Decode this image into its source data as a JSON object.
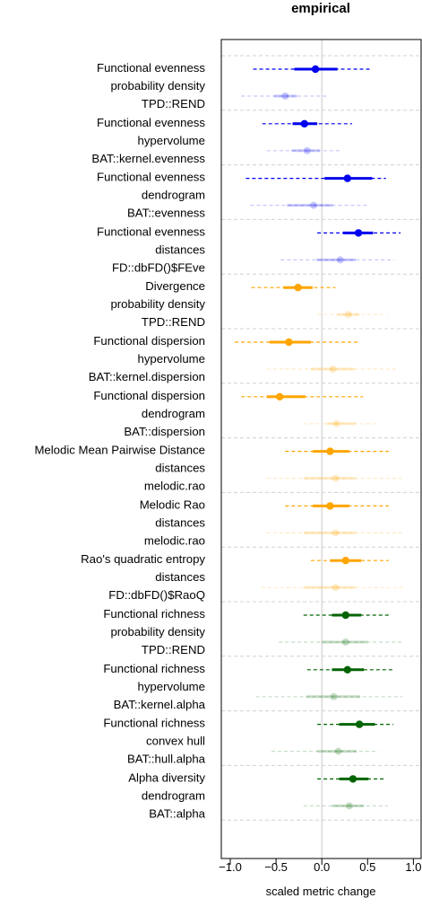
{
  "chart_data": {
    "type": "forest-plot",
    "title": "empirical",
    "xlabel": "scaled metric change",
    "xlim": [
      -1.1,
      1.1
    ],
    "xticks": [
      -1.0,
      -0.5,
      0.0,
      0.5,
      1.0
    ],
    "xtick_labels": [
      "−1.0",
      "−0.5",
      "0.0",
      "0.5",
      "1.0"
    ],
    "reference_line_x": 0,
    "group_separators": "dashed grey",
    "metrics": [
      {
        "labels": [
          "Functional evenness",
          "probability density",
          "TPD::REND"
        ],
        "color": "#0000ee",
        "main": {
          "point": -0.07,
          "inner": [
            -0.3,
            0.17
          ],
          "outer": [
            -0.75,
            0.55
          ]
        },
        "faded": {
          "point": -0.4,
          "inner": [
            -0.52,
            -0.27
          ],
          "outer": [
            -0.88,
            0.05
          ]
        }
      },
      {
        "labels": [
          "Functional evenness",
          "hypervolume",
          "BAT::kernel.evenness"
        ],
        "color": "#0000ee",
        "main": {
          "point": -0.19,
          "inner": [
            -0.32,
            -0.05
          ],
          "outer": [
            -0.65,
            0.33
          ]
        },
        "faded": {
          "point": -0.16,
          "inner": [
            -0.33,
            -0.02
          ],
          "outer": [
            -0.6,
            0.22
          ]
        }
      },
      {
        "labels": [
          "Functional evenness",
          "dendrogram",
          "BAT::evenness"
        ],
        "color": "#0000ee",
        "main": {
          "point": 0.28,
          "inner": [
            0.03,
            0.55
          ],
          "outer": [
            -0.83,
            0.7
          ]
        },
        "faded": {
          "point": -0.09,
          "inner": [
            -0.38,
            0.12
          ],
          "outer": [
            -0.78,
            0.5
          ]
        }
      },
      {
        "labels": [
          "Functional evenness",
          "distances",
          "FD::dbFD()$FEve"
        ],
        "color": "#0000ee",
        "main": {
          "point": 0.4,
          "inner": [
            0.23,
            0.56
          ],
          "outer": [
            -0.05,
            0.86
          ]
        },
        "faded": {
          "point": 0.2,
          "inner": [
            -0.06,
            0.37
          ],
          "outer": [
            -0.45,
            0.79
          ]
        }
      },
      {
        "labels": [
          "Divergence",
          "probability density",
          "TPD::REND"
        ],
        "color": "#ffa500",
        "main": {
          "point": -0.26,
          "inner": [
            -0.42,
            -0.1
          ],
          "outer": [
            -0.77,
            0.15
          ]
        },
        "faded": {
          "point": 0.29,
          "inner": [
            0.17,
            0.41
          ],
          "outer": [
            -0.05,
            0.72
          ]
        }
      },
      {
        "labels": [
          "Functional dispersion",
          "hypervolume",
          "BAT::kernel.dispersion"
        ],
        "color": "#ffa500",
        "main": {
          "point": -0.36,
          "inner": [
            -0.57,
            -0.12
          ],
          "outer": [
            -0.95,
            0.4
          ]
        },
        "faded": {
          "point": 0.12,
          "inner": [
            -0.12,
            0.36
          ],
          "outer": [
            -0.6,
            0.83
          ]
        }
      },
      {
        "labels": [
          "Functional dispersion",
          "dendrogram",
          "BAT::dispersion"
        ],
        "color": "#ffa500",
        "main": {
          "point": -0.46,
          "inner": [
            -0.6,
            -0.18
          ],
          "outer": [
            -0.88,
            0.45
          ]
        },
        "faded": {
          "point": 0.16,
          "inner": [
            0.05,
            0.37
          ],
          "outer": [
            -0.2,
            0.62
          ]
        }
      },
      {
        "labels": [
          "Melodic Mean Pairwise Distance",
          "distances",
          "melodic.rao"
        ],
        "color": "#ffa500",
        "main": {
          "point": 0.09,
          "inner": [
            -0.1,
            0.3
          ],
          "outer": [
            -0.4,
            0.73
          ]
        },
        "faded": {
          "point": 0.15,
          "inner": [
            -0.2,
            0.37
          ],
          "outer": [
            -0.6,
            0.87
          ]
        }
      },
      {
        "labels": [
          "Melodic Rao",
          "distances",
          "melodic.rao"
        ],
        "color": "#ffa500",
        "main": {
          "point": 0.09,
          "inner": [
            -0.1,
            0.3
          ],
          "outer": [
            -0.4,
            0.73
          ]
        },
        "faded": {
          "point": 0.15,
          "inner": [
            -0.2,
            0.37
          ],
          "outer": [
            -0.6,
            0.87
          ]
        }
      },
      {
        "labels": [
          "Rao's quadratic entropy",
          "distances",
          "FD::dbFD()$RaoQ"
        ],
        "color": "#ffa500",
        "main": {
          "point": 0.26,
          "inner": [
            0.09,
            0.43
          ],
          "outer": [
            -0.12,
            0.73
          ]
        },
        "faded": {
          "point": 0.15,
          "inner": [
            -0.2,
            0.37
          ],
          "outer": [
            -0.66,
            0.9
          ]
        }
      },
      {
        "labels": [
          "Functional richness",
          "probability density",
          "TPD::REND"
        ],
        "color": "#006400",
        "main": {
          "point": 0.26,
          "inner": [
            0.11,
            0.43
          ],
          "outer": [
            -0.2,
            0.73
          ]
        },
        "faded": {
          "point": 0.26,
          "inner": [
            0.0,
            0.5
          ],
          "outer": [
            -0.47,
            0.9
          ]
        }
      },
      {
        "labels": [
          "Functional richness",
          "hypervolume",
          "BAT::kernel.alpha"
        ],
        "color": "#006400",
        "main": {
          "point": 0.28,
          "inner": [
            0.11,
            0.46
          ],
          "outer": [
            -0.16,
            0.77
          ]
        },
        "faded": {
          "point": 0.13,
          "inner": [
            -0.17,
            0.42
          ],
          "outer": [
            -0.72,
            0.88
          ]
        }
      },
      {
        "labels": [
          "Functional richness",
          "convex hull",
          "BAT::hull.alpha"
        ],
        "color": "#006400",
        "main": {
          "point": 0.41,
          "inner": [
            0.19,
            0.58
          ],
          "outer": [
            -0.05,
            0.78
          ]
        },
        "faded": {
          "point": 0.18,
          "inner": [
            -0.05,
            0.38
          ],
          "outer": [
            -0.55,
            0.62
          ]
        }
      },
      {
        "labels": [
          "Alpha diversity",
          "dendrogram",
          "BAT::alpha"
        ],
        "color": "#006400",
        "main": {
          "point": 0.34,
          "inner": [
            0.19,
            0.51
          ],
          "outer": [
            -0.05,
            0.7
          ]
        },
        "faded": {
          "point": 0.3,
          "inner": [
            0.11,
            0.46
          ],
          "outer": [
            -0.2,
            0.72
          ]
        }
      }
    ]
  }
}
